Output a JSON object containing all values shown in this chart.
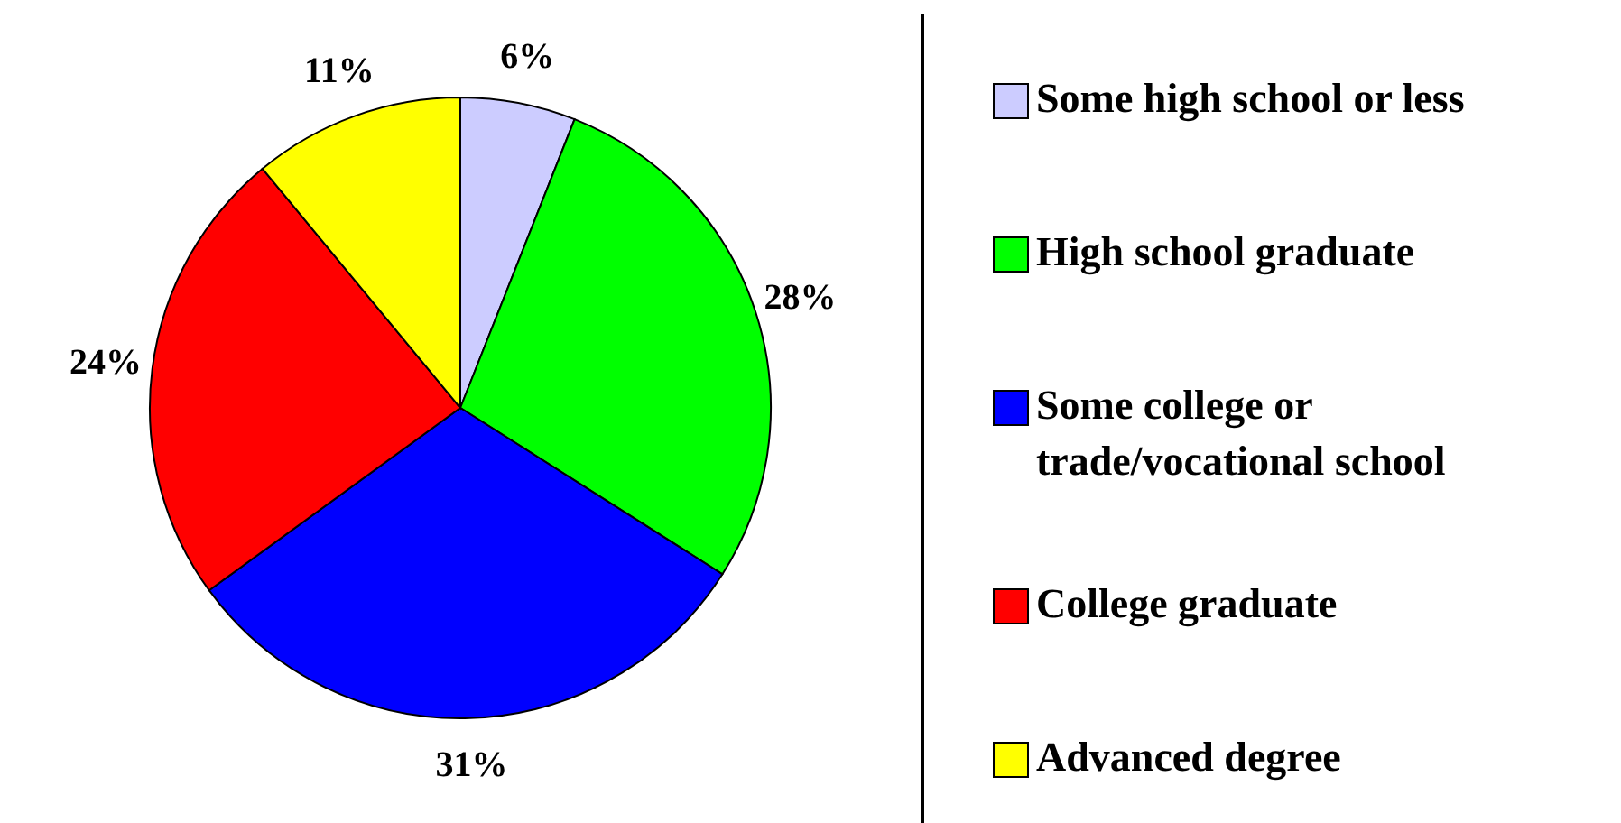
{
  "chart_data": {
    "type": "pie",
    "categories": [
      "Some high school or less",
      "High school graduate",
      "Some college or trade/vocational school",
      "College graduate",
      "Advanced degree"
    ],
    "values": [
      6,
      28,
      31,
      24,
      11
    ],
    "colors": [
      "#ccccff",
      "#00ff00",
      "#0000ff",
      "#ff0000",
      "#ffff00"
    ],
    "value_labels": [
      "6%",
      "28%",
      "31%",
      "24%",
      "11%"
    ],
    "legend": "right"
  }
}
